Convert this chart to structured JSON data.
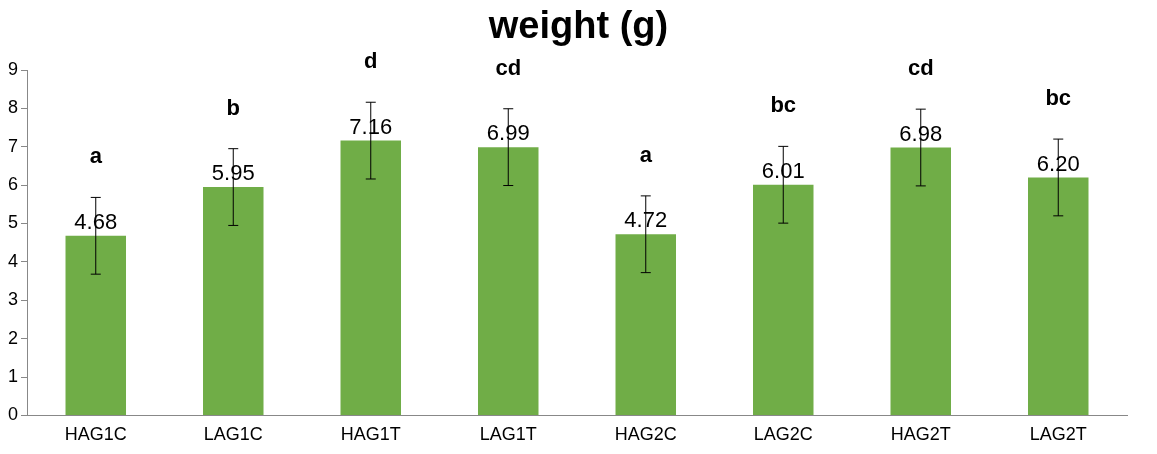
{
  "chart_data": {
    "type": "bar",
    "title": "weight (g)",
    "categories": [
      "HAG1C",
      "LAG1C",
      "HAG1T",
      "LAG1T",
      "HAG2C",
      "LAG2C",
      "HAG2T",
      "LAG2T"
    ],
    "values": [
      4.68,
      5.95,
      7.16,
      6.99,
      4.72,
      6.01,
      6.98,
      6.2
    ],
    "errors": [
      1,
      1,
      1,
      1,
      1,
      1,
      1,
      1
    ],
    "value_labels": [
      "4.68",
      "5.95",
      "7.16",
      "6.99",
      "4.72",
      "6.01",
      "6.98",
      "6.20"
    ],
    "color": "#70ad47",
    "ylim": [
      0,
      9
    ],
    "yticks": [
      0,
      1,
      2,
      3,
      4,
      5,
      6,
      7,
      8,
      9
    ],
    "grid": false,
    "legend": false,
    "annotations": [
      "a",
      "b",
      "d",
      "cd",
      "a",
      "bc",
      "cd",
      "bc"
    ]
  }
}
